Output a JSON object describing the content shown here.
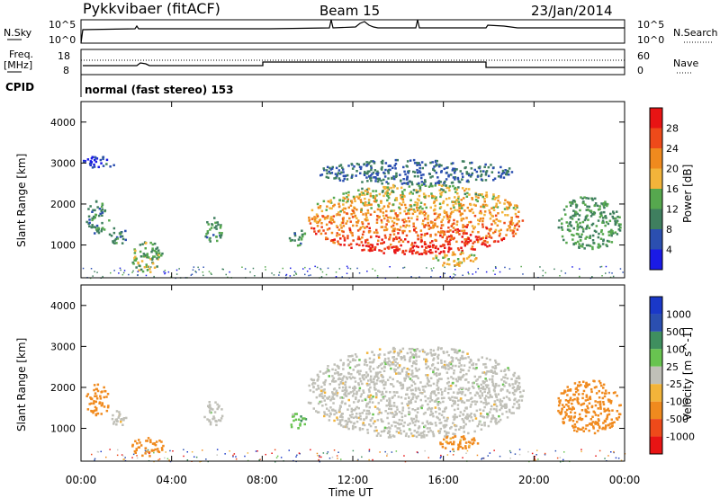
{
  "header": {
    "radar": "Pykkvibaer (fitACF)",
    "beam": "Beam 15",
    "date": "23/Jan/2014"
  },
  "noise_panel": {
    "left_label": "N.Sky",
    "right_label": "N.Search",
    "ticks_left": [
      "10^5",
      "10^0"
    ],
    "ticks_right": [
      "10^5",
      "10^0"
    ]
  },
  "freq_panel": {
    "left_label_line1": "Freq.",
    "left_label_line2": "[MHz]",
    "ticks_left": [
      "18",
      "8"
    ],
    "right_label": "Nave",
    "ticks_right": [
      "60",
      "0"
    ]
  },
  "cpid_panel": {
    "label": "CPID",
    "text": "normal (fast stereo) 153"
  },
  "colors": {
    "power": [
      "#1a1ae6",
      "#2b4fb0",
      "#3f7f5f",
      "#56a84e",
      "#f2b43a",
      "#f08a1e",
      "#ee4a1a",
      "#e81414"
    ],
    "velocity": [
      "#e81414",
      "#ee4a1a",
      "#f08a1e",
      "#f2b43a",
      "#c8c8c0",
      "#68c450",
      "#3f8f5f",
      "#2b4fb0",
      "#1a38c8"
    ],
    "ground_scatter": "#c0c0b8"
  },
  "chart_data": [
    {
      "type": "heatmap",
      "name": "power",
      "xlabel": "",
      "ylabel": "Slant Range [km]",
      "y_ticks": [
        "1000",
        "2000",
        "3000",
        "4000"
      ],
      "ylim": [
        200,
        4500
      ],
      "xlim": [
        "00:00",
        "24:00"
      ],
      "colorbar": {
        "label": "Power [dB]",
        "ticks": [
          "4",
          "8",
          "12",
          "16",
          "20",
          "24",
          "28"
        ],
        "range": [
          0,
          32
        ]
      },
      "regions": [
        {
          "t0": 0.2,
          "t1": 1.2,
          "r0": 1300,
          "r1": 2100,
          "level": 10
        },
        {
          "t0": 1.2,
          "t1": 2.0,
          "r0": 1050,
          "r1": 1450,
          "level": 9
        },
        {
          "t0": 2.2,
          "t1": 3.6,
          "r0": 350,
          "r1": 1100,
          "level": 14
        },
        {
          "t0": 5.4,
          "t1": 6.2,
          "r0": 1100,
          "r1": 1700,
          "level": 11
        },
        {
          "t0": 9.1,
          "t1": 9.9,
          "r0": 1000,
          "r1": 1400,
          "level": 10
        },
        {
          "t0": 10.0,
          "t1": 19.5,
          "r0": 800,
          "r1": 2500,
          "level": 22
        },
        {
          "t0": 10.5,
          "t1": 19.0,
          "r0": 2500,
          "r1": 3100,
          "level": 8
        },
        {
          "t0": 15.5,
          "t1": 17.5,
          "r0": 500,
          "r1": 850,
          "level": 18
        },
        {
          "t0": 21.0,
          "t1": 23.8,
          "r0": 900,
          "r1": 2200,
          "level": 12
        },
        {
          "t0": 0.0,
          "t1": 1.5,
          "r0": 2900,
          "r1": 3200,
          "level": 5
        }
      ]
    },
    {
      "type": "heatmap",
      "name": "velocity",
      "xlabel": "Time UT",
      "ylabel": "Slant Range [km]",
      "x_ticks": [
        "00:00",
        "04:00",
        "08:00",
        "12:00",
        "16:00",
        "20:00",
        "00:00"
      ],
      "y_ticks": [
        "1000",
        "2000",
        "3000",
        "4000"
      ],
      "ylim": [
        200,
        4500
      ],
      "xlim": [
        "00:00",
        "24:00"
      ],
      "colorbar": {
        "label": "Velocity [m s^-1]",
        "ticks": [
          "1000",
          "500",
          "100",
          "25",
          "-25",
          "-100",
          "-500",
          "-1000"
        ]
      },
      "regions": [
        {
          "t0": 0.2,
          "t1": 1.2,
          "r0": 1300,
          "r1": 2100,
          "velocity": -300
        },
        {
          "t0": 1.2,
          "t1": 2.0,
          "r0": 1050,
          "r1": 1450,
          "velocity": 0
        },
        {
          "t0": 2.2,
          "t1": 3.6,
          "r0": 350,
          "r1": 800,
          "velocity": -400
        },
        {
          "t0": 5.4,
          "t1": 6.2,
          "r0": 1100,
          "r1": 1700,
          "velocity": 0
        },
        {
          "t0": 9.1,
          "t1": 9.9,
          "r0": 1000,
          "r1": 1400,
          "velocity": 60
        },
        {
          "t0": 10.0,
          "t1": 19.5,
          "r0": 800,
          "r1": 3000,
          "velocity": 0
        },
        {
          "t0": 15.5,
          "t1": 17.5,
          "r0": 500,
          "r1": 850,
          "velocity": -150
        },
        {
          "t0": 21.0,
          "t1": 23.8,
          "r0": 900,
          "r1": 2200,
          "velocity": -300
        }
      ]
    }
  ]
}
